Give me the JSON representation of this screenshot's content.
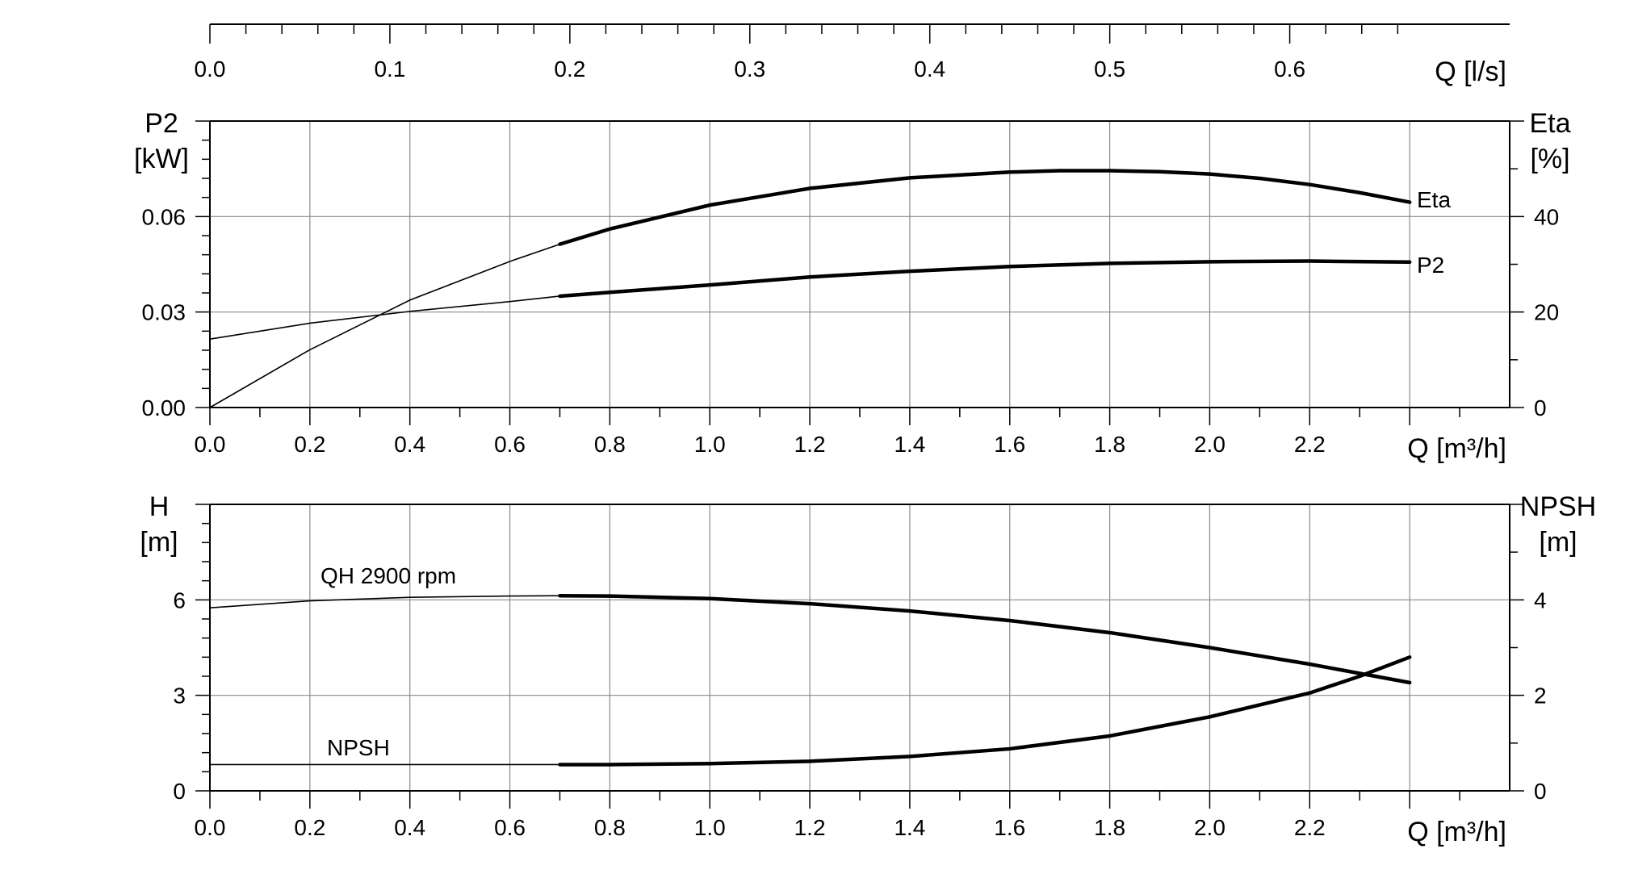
{
  "chart_data": [
    {
      "type": "line",
      "name": "top-flow-axis",
      "xlabel": "Q [l/s]",
      "xlim": [
        0,
        0.7222
      ],
      "xticks": [
        0.0,
        0.1,
        0.2,
        0.3,
        0.4,
        0.5,
        0.6
      ],
      "xtick_labels": [
        "0.0",
        "0.1",
        "0.2",
        "0.3",
        "0.4",
        "0.5",
        "0.6"
      ]
    },
    {
      "type": "line",
      "name": "power-efficiency",
      "xlabel": "Q [m³/h]",
      "xlim": [
        0,
        2.6
      ],
      "xticks": [
        0.0,
        0.2,
        0.4,
        0.6,
        0.8,
        1.0,
        1.2,
        1.4,
        1.6,
        1.8,
        2.0,
        2.2
      ],
      "xtick_labels": [
        "0.0",
        "0.2",
        "0.4",
        "0.6",
        "0.8",
        "1.0",
        "1.2",
        "1.4",
        "1.6",
        "1.8",
        "2.0",
        "2.2"
      ],
      "ylabel_left": [
        "P2",
        "[kW]"
      ],
      "ylim_left": [
        0,
        0.09
      ],
      "yticks_left": [
        0.0,
        0.03,
        0.06
      ],
      "ytick_labels_left": [
        "0.00",
        "0.03",
        "0.06"
      ],
      "ylabel_right": [
        "Eta",
        "[%]"
      ],
      "ylim_right": [
        0,
        60
      ],
      "yticks_right": [
        0,
        20,
        40
      ],
      "ytick_labels_right": [
        "0",
        "20",
        "40"
      ],
      "grid": true,
      "series": [
        {
          "name": "Eta",
          "axis": "right",
          "x": [
            0,
            0.2,
            0.4,
            0.6,
            0.7,
            0.8,
            1.0,
            1.2,
            1.4,
            1.6,
            1.7,
            1.8,
            1.9,
            2.0,
            2.1,
            2.2,
            2.3,
            2.4
          ],
          "y": [
            0,
            12.1,
            22.5,
            30.6,
            34.2,
            37.4,
            42.4,
            45.9,
            48.1,
            49.3,
            49.6,
            49.6,
            49.4,
            48.9,
            48.0,
            46.7,
            45.0,
            43.0
          ]
        },
        {
          "name": "P2",
          "axis": "left",
          "x": [
            0,
            0.2,
            0.4,
            0.6,
            0.7,
            0.8,
            1.0,
            1.2,
            1.4,
            1.6,
            1.8,
            2.0,
            2.2,
            2.4
          ],
          "y": [
            0.0215,
            0.0265,
            0.0302,
            0.0333,
            0.035,
            0.0362,
            0.0385,
            0.041,
            0.0428,
            0.0443,
            0.0453,
            0.0458,
            0.046,
            0.0457
          ]
        }
      ]
    },
    {
      "type": "line",
      "name": "head-npsh",
      "xlabel": "Q [m³/h]",
      "xlim": [
        0,
        2.6
      ],
      "xticks": [
        0.0,
        0.2,
        0.4,
        0.6,
        0.8,
        1.0,
        1.2,
        1.4,
        1.6,
        1.8,
        2.0,
        2.2
      ],
      "xtick_labels": [
        "0.0",
        "0.2",
        "0.4",
        "0.6",
        "0.8",
        "1.0",
        "1.2",
        "1.4",
        "1.6",
        "1.8",
        "2.0",
        "2.2"
      ],
      "ylabel_left": [
        "H",
        "[m]"
      ],
      "ylim_left": [
        0,
        9
      ],
      "yticks_left": [
        0,
        3,
        6
      ],
      "ytick_labels_left": [
        "0",
        "3",
        "6"
      ],
      "ylabel_right": [
        "NPSH",
        "[m]"
      ],
      "ylim_right": [
        0,
        6
      ],
      "yticks_right": [
        0,
        2,
        4
      ],
      "ytick_labels_right": [
        "0",
        "2",
        "4"
      ],
      "grid": true,
      "series": [
        {
          "name": "QH 2900 rpm",
          "axis": "left",
          "x": [
            0,
            0.2,
            0.4,
            0.6,
            0.7,
            0.8,
            1.0,
            1.2,
            1.4,
            1.6,
            1.8,
            2.0,
            2.2,
            2.4
          ],
          "y": [
            5.75,
            5.97,
            6.08,
            6.12,
            6.13,
            6.12,
            6.04,
            5.88,
            5.65,
            5.35,
            4.97,
            4.5,
            3.98,
            3.4
          ]
        },
        {
          "name": "NPSH",
          "axis": "right",
          "x": [
            0,
            0.2,
            0.4,
            0.6,
            0.7,
            0.8,
            1.0,
            1.2,
            1.4,
            1.6,
            1.8,
            2.0,
            2.2,
            2.3,
            2.4
          ],
          "y": [
            0.55,
            0.55,
            0.55,
            0.55,
            0.55,
            0.55,
            0.57,
            0.62,
            0.72,
            0.88,
            1.15,
            1.55,
            2.05,
            2.4,
            2.8
          ]
        }
      ]
    }
  ],
  "thin_segment_limit": 0.7
}
